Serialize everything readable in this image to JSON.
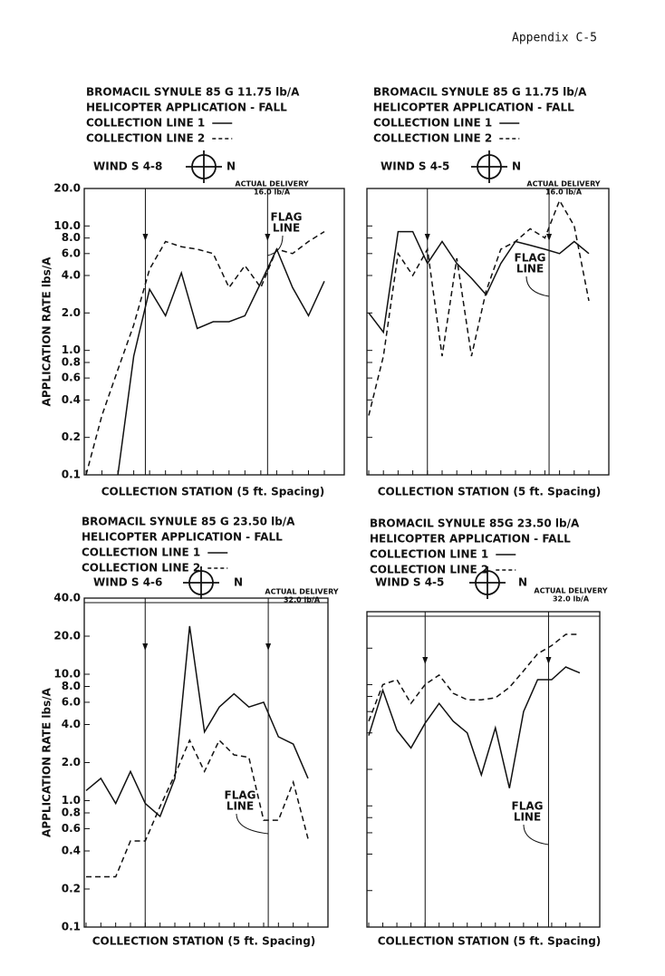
{
  "header": "Appendix C-5",
  "chart_data": [
    {
      "type": "line",
      "header_lines": [
        "BROMACIL SYNULE 85 G 11.75 lb/A",
        "HELICOPTER APPLICATION - FALL"
      ],
      "wind": "WIND S 4-8",
      "compass": "N",
      "delivery": [
        "ACTUAL DELIVERY",
        "16.0 lb/A"
      ],
      "flag_label": [
        "FLAG",
        "LINE"
      ],
      "x_label": "COLLECTION STATION (5 ft. Spacing)",
      "y_label": "APPLICATION RATE lbs/A",
      "log_scale": true,
      "ylim": [
        0.1,
        20
      ],
      "ytick_labels": true,
      "yticks": [
        0.1,
        0.2,
        0.4,
        0.6,
        0.8,
        {
          "value": 1,
          "label": "1.0"
        },
        {
          "value": 2,
          "label": "2.0"
        },
        {
          "value": 4,
          "label": "4.0"
        },
        {
          "value": 6,
          "label": "6.0"
        },
        {
          "value": 8,
          "label": "8.0"
        },
        {
          "value": 10,
          "label": "10.0"
        },
        {
          "value": 20,
          "label": "20.0"
        }
      ],
      "categories": [
        null,
        null,
        null,
        null,
        null,
        null,
        null,
        null,
        null,
        null,
        null,
        null,
        null,
        null,
        null,
        null
      ],
      "series": [
        {
          "name": "COLLECTION LINE 1",
          "color": "#111111",
          "style": "solid",
          "values": [
            null,
            null,
            0.1,
            0.9,
            3.1,
            1.9,
            4.2,
            1.5,
            1.7,
            1.7,
            1.9,
            3.5,
            6.5,
            3.2,
            1.9,
            3.6
          ]
        },
        {
          "name": "COLLECTION LINE 2",
          "color": "#111111",
          "style": "dashed",
          "values": [
            0.1,
            0.3,
            0.7,
            1.6,
            4.5,
            7.5,
            6.8,
            6.5,
            6.0,
            3.2,
            4.8,
            3.2,
            6.5,
            6.0,
            7.5,
            9.0
          ]
        }
      ]
    },
    {
      "type": "line",
      "header_lines": [
        "BROMACIL SYNULE 85 G 11.75 lb/A",
        "HELICOPTER APPLICATION - FALL"
      ],
      "wind": "WIND S 4-5",
      "compass": "N",
      "delivery": [
        "ACTUAL DELIVERY",
        "16.0 lb/A"
      ],
      "flag_label": [
        "FLAG",
        "LINE"
      ],
      "x_label": "COLLECTION STATION (5 ft. Spacing)",
      "log_scale": true,
      "ylim": [
        0.1,
        20
      ],
      "ytick_labels": false,
      "yticks": [
        0.1,
        0.2,
        0.4,
        0.6,
        0.8,
        1,
        2,
        4,
        6,
        8,
        10,
        20
      ],
      "categories": [
        null,
        null,
        null,
        null,
        null,
        null,
        null,
        null,
        null,
        null,
        null,
        null,
        null,
        null,
        null,
        null
      ],
      "series": [
        {
          "name": "COLLECTION LINE 1",
          "color": "#111111",
          "style": "solid",
          "values": [
            2.0,
            1.4,
            9.0,
            9.0,
            5.0,
            7.5,
            5.0,
            3.8,
            2.8,
            5.0,
            7.5,
            7.0,
            6.5,
            6.0,
            7.5,
            6.0
          ]
        },
        {
          "name": "COLLECTION LINE 2",
          "color": "#111111",
          "style": "dashed",
          "values": [
            0.3,
            0.9,
            6.0,
            4.0,
            6.5,
            0.9,
            5.5,
            0.9,
            3.0,
            6.5,
            7.5,
            9.5,
            8.0,
            16.0,
            10.0,
            2.5
          ]
        }
      ]
    },
    {
      "type": "line",
      "header_lines": [
        "BROMACIL SYNULE 85 G 23.50 lb/A",
        "HELICOPTER APPLICATION - FALL"
      ],
      "wind": "WIND S 4-6",
      "compass": "N",
      "delivery": [
        "ACTUAL DELIVERY",
        "32.0 lb/A"
      ],
      "flag_label": [
        "FLAG",
        "LINE"
      ],
      "x_label": "COLLECTION STATION (5 ft. Spacing)",
      "y_label": "APPLICATION RATE lbs/A",
      "log_scale": true,
      "ylim": [
        0.1,
        40
      ],
      "ytick_labels": true,
      "yticks": [
        0.1,
        0.2,
        0.4,
        0.6,
        0.8,
        {
          "value": 1,
          "label": "1.0"
        },
        {
          "value": 2,
          "label": "2.0"
        },
        {
          "value": 4,
          "label": "4.0"
        },
        {
          "value": 6,
          "label": "6.0"
        },
        {
          "value": 8,
          "label": "8.0"
        },
        {
          "value": 10,
          "label": "10.0"
        },
        {
          "value": 20,
          "label": "20.0"
        },
        {
          "value": 40,
          "label": "40.0"
        }
      ],
      "categories": [
        null,
        null,
        null,
        null,
        null,
        null,
        null,
        null,
        null,
        null,
        null,
        null,
        null,
        null,
        null,
        null
      ],
      "series": [
        {
          "name": "COLLECTION LINE 1",
          "color": "#111111",
          "style": "solid",
          "values": [
            1.2,
            1.5,
            0.95,
            1.7,
            0.95,
            0.75,
            1.5,
            24,
            3.5,
            5.5,
            7.0,
            5.5,
            6.0,
            3.2,
            2.8,
            1.5
          ]
        },
        {
          "name": "COLLECTION LINE 2",
          "color": "#111111",
          "style": "dashed",
          "values": [
            0.25,
            0.25,
            0.25,
            0.48,
            0.48,
            0.9,
            1.6,
            3.0,
            1.7,
            3.0,
            2.3,
            2.2,
            0.7,
            0.7,
            1.4,
            0.5
          ]
        }
      ]
    },
    {
      "type": "line",
      "header_lines": [
        "BROMACIL SYNULE 85G 23.50 lb/A",
        "HELICOPTER APPLICATION - FALL"
      ],
      "wind": "WIND S 4-5",
      "compass": "N",
      "delivery": [
        "ACTUAL DELIVERY",
        "32.0 lb/A"
      ],
      "flag_label": [
        "FLAG",
        "LINE"
      ],
      "x_label": "COLLECTION STATION (5 ft. Spacing)",
      "log_scale": true,
      "ylim": [
        0.1,
        40
      ],
      "ytick_labels": false,
      "yticks": [
        0.1,
        0.2,
        0.4,
        0.6,
        0.8,
        1,
        2,
        4,
        6,
        8,
        10,
        20,
        40
      ],
      "categories": [
        null,
        null,
        null,
        null,
        null,
        null,
        null,
        null,
        null,
        null,
        null,
        null,
        null,
        null,
        null,
        null
      ],
      "series": [
        {
          "name": "COLLECTION LINE 1",
          "color": "#111111",
          "style": "solid",
          "values": [
            3.8,
            9.0,
            4.2,
            3.0,
            4.8,
            7.0,
            5.0,
            4.0,
            1.8,
            4.4,
            1.4,
            6.0,
            11,
            11,
            14,
            12.5
          ]
        },
        {
          "name": "COLLECTION LINE 2",
          "color": "#111111",
          "style": "dashed",
          "values": [
            5.0,
            10,
            11,
            7.0,
            10,
            12,
            8.5,
            7.5,
            7.5,
            7.8,
            9.5,
            13,
            18,
            21,
            26,
            26
          ]
        }
      ]
    }
  ]
}
